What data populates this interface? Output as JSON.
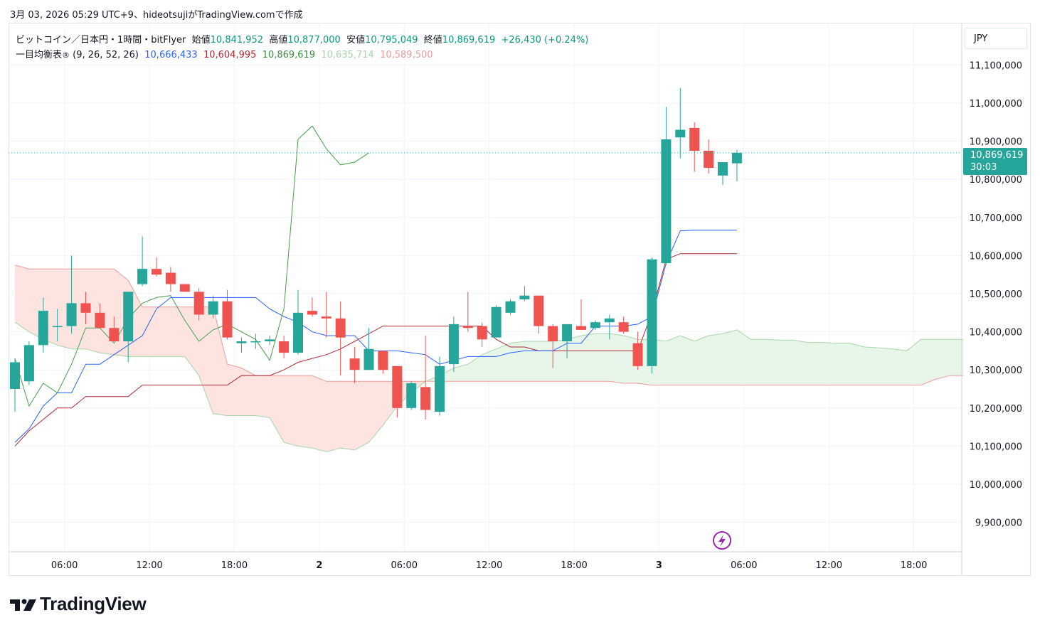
{
  "header": {
    "topline": "3月 03, 2026 05:29 UTC+9、hideotsujiがTradingView.comで作成"
  },
  "legend": {
    "symbol": "ビットコイン／日本円・1時間・bitFlyer",
    "open_label": "始値",
    "open": "10,841,952",
    "high_label": "高値",
    "high": "10,877,000",
    "low_label": "安値",
    "low": "10,795,049",
    "close_label": "終値",
    "close": "10,869,619",
    "change": "+26,430 (+0.24%)",
    "indicator": "一目均衡表",
    "indicator_mark": "®",
    "indicator_params": "(9, 26, 52, 26)",
    "tenkan": "10,666,433",
    "kijun": "10,604,995",
    "chikou": "10,869,619",
    "span_a": "10,635,714",
    "span_b": "10,589,500"
  },
  "currency": "JPY",
  "last_price": {
    "value": "10,869,619",
    "countdown": "30:03"
  },
  "brand": "TradingView",
  "colors": {
    "up": "#26a69a",
    "down": "#ef5350",
    "tenkan": "#2962ff",
    "kijun": "#b22833",
    "chikou": "#43a047",
    "span_a": "#a5d6a7",
    "span_b": "#ef9a9a",
    "cloud_bull": "#e8f5e9",
    "cloud_bear": "#fde4e1",
    "grid": "#f0f3fa"
  },
  "chart_data": {
    "type": "candlestick",
    "title": "ビットコイン／日本円・1時間・bitFlyer",
    "ylim": [
      9830000,
      11200000
    ],
    "y_ticks": [
      "11,100,000",
      "11,000,000",
      "10,900,000",
      "10,800,000",
      "10,700,000",
      "10,600,000",
      "10,500,000",
      "10,400,000",
      "10,300,000",
      "10,200,000",
      "10,100,000",
      "10,000,000",
      "9,900,000"
    ],
    "y_tick_values": [
      11100000,
      11000000,
      10900000,
      10800000,
      10700000,
      10600000,
      10500000,
      10400000,
      10300000,
      10200000,
      10100000,
      10000000,
      9900000
    ],
    "x_ticks": [
      {
        "slot": 3.5,
        "label": "06:00",
        "bold": false
      },
      {
        "slot": 9.5,
        "label": "12:00",
        "bold": false
      },
      {
        "slot": 15.5,
        "label": "18:00",
        "bold": false
      },
      {
        "slot": 21.5,
        "label": "2",
        "bold": true
      },
      {
        "slot": 27.5,
        "label": "06:00",
        "bold": false
      },
      {
        "slot": 33.5,
        "label": "12:00",
        "bold": false
      },
      {
        "slot": 39.5,
        "label": "18:00",
        "bold": false
      },
      {
        "slot": 45.5,
        "label": "3",
        "bold": true
      },
      {
        "slot": 51.5,
        "label": "06:00",
        "bold": false
      },
      {
        "slot": 57.5,
        "label": "12:00",
        "bold": false
      },
      {
        "slot": 63.5,
        "label": "18:00",
        "bold": false
      }
    ],
    "candles": [
      [
        10250000,
        10330000,
        10190000,
        10320000
      ],
      [
        10270000,
        10375000,
        10260000,
        10365000
      ],
      [
        10365000,
        10490000,
        10345000,
        10455000
      ],
      [
        10415000,
        10460000,
        10375000,
        10415000
      ],
      [
        10415000,
        10600000,
        10395000,
        10475000
      ],
      [
        10475000,
        10505000,
        10420000,
        10450000
      ],
      [
        10450000,
        10475000,
        10420000,
        10410000
      ],
      [
        10410000,
        10440000,
        10375000,
        10375000
      ],
      [
        10375000,
        10500000,
        10320000,
        10505000
      ],
      [
        10525000,
        10650000,
        10520000,
        10565000
      ],
      [
        10565000,
        10595000,
        10545000,
        10550000
      ],
      [
        10555000,
        10570000,
        10505000,
        10525000
      ],
      [
        10525000,
        10525000,
        10505000,
        10505000
      ],
      [
        10505000,
        10515000,
        10430000,
        10445000
      ],
      [
        10445000,
        10495000,
        10435000,
        10480000
      ],
      [
        10480000,
        10510000,
        10380000,
        10385000
      ],
      [
        10370000,
        10385000,
        10345000,
        10375000
      ],
      [
        10375000,
        10395000,
        10355000,
        10375000
      ],
      [
        10375000,
        10390000,
        10365000,
        10380000
      ],
      [
        10375000,
        10390000,
        10330000,
        10345000
      ],
      [
        10345000,
        10510000,
        10340000,
        10450000
      ],
      [
        10455000,
        10490000,
        10440000,
        10445000
      ],
      [
        10440000,
        10505000,
        10385000,
        10435000
      ],
      [
        10435000,
        10480000,
        10285000,
        10385000
      ],
      [
        10330000,
        10360000,
        10265000,
        10300000
      ],
      [
        10300000,
        10410000,
        10300000,
        10355000
      ],
      [
        10350000,
        10350000,
        10290000,
        10300000
      ],
      [
        10310000,
        10310000,
        10175000,
        10200000
      ],
      [
        10200000,
        10270000,
        10195000,
        10265000
      ],
      [
        10255000,
        10390000,
        10170000,
        10195000
      ],
      [
        10190000,
        10335000,
        10180000,
        10310000
      ],
      [
        10315000,
        10440000,
        10295000,
        10420000
      ],
      [
        10415000,
        10505000,
        10400000,
        10410000
      ],
      [
        10415000,
        10425000,
        10360000,
        10380000
      ],
      [
        10385000,
        10470000,
        10385000,
        10465000
      ],
      [
        10450000,
        10485000,
        10445000,
        10480000
      ],
      [
        10485000,
        10520000,
        10480000,
        10495000
      ],
      [
        10495000,
        10495000,
        10395000,
        10415000
      ],
      [
        10415000,
        10420000,
        10305000,
        10375000
      ],
      [
        10375000,
        10420000,
        10330000,
        10420000
      ],
      [
        10415000,
        10485000,
        10405000,
        10405000
      ],
      [
        10410000,
        10430000,
        10405000,
        10425000
      ],
      [
        10425000,
        10445000,
        10380000,
        10435000
      ],
      [
        10425000,
        10440000,
        10395000,
        10400000
      ],
      [
        10370000,
        10400000,
        10300000,
        10310000
      ],
      [
        10310000,
        10595000,
        10290000,
        10590000
      ],
      [
        10580000,
        10990000,
        10575000,
        10905000
      ],
      [
        10910000,
        11040000,
        10855000,
        10930000
      ],
      [
        10935000,
        10950000,
        10820000,
        10875000
      ],
      [
        10875000,
        10905000,
        10815000,
        10830000
      ],
      [
        10810000,
        10845000,
        10785000,
        10845000
      ],
      [
        10841952,
        10877000,
        10795049,
        10869619
      ]
    ],
    "tenkan": [
      10110000,
      10145000,
      10205000,
      10240000,
      10240000,
      10315000,
      10315000,
      10340000,
      10365000,
      10390000,
      10460000,
      10490000,
      10490000,
      10490000,
      10490000,
      10490000,
      10490000,
      10490000,
      10460000,
      10440000,
      10425000,
      10400000,
      10390000,
      10390000,
      10390000,
      10350000,
      10350000,
      10350000,
      10345000,
      10340000,
      10315000,
      10325000,
      10335000,
      10335000,
      10335000,
      10345000,
      10350000,
      10350000,
      10350000,
      10370000,
      10370000,
      10415000,
      10415000,
      10415000,
      10420000,
      10440000,
      10580000,
      10665000,
      10666433,
      10666433,
      10666433,
      10666433
    ],
    "kijun": [
      10100000,
      10140000,
      10170000,
      10200000,
      10200000,
      10230000,
      10230000,
      10230000,
      10230000,
      10260000,
      10260000,
      10260000,
      10260000,
      10260000,
      10260000,
      10260000,
      10285000,
      10285000,
      10285000,
      10300000,
      10320000,
      10330000,
      10340000,
      10355000,
      10375000,
      10395000,
      10415000,
      10415000,
      10415000,
      10415000,
      10415000,
      10415000,
      10415000,
      10415000,
      10380000,
      10360000,
      10360000,
      10350000,
      10350000,
      10350000,
      10350000,
      10350000,
      10350000,
      10350000,
      10350000,
      10450000,
      10590000,
      10604995,
      10604995,
      10604995,
      10604995,
      10604995
    ],
    "chikou": [
      10330000,
      10205000,
      10265000,
      10240000,
      10315000,
      10410000,
      10410000,
      10370000,
      10435000,
      10475000,
      10490000,
      10495000,
      10430000,
      10375000,
      10405000,
      10420000,
      10400000,
      10380000,
      10325000,
      10460000,
      10905000,
      10940000,
      10880000,
      10838000,
      10845000,
      10869619
    ],
    "span_a": [
      10425000,
      10400000,
      10380000,
      10365000,
      10355000,
      10355000,
      10345000,
      10340000,
      10335000,
      10335000,
      10335000,
      10335000,
      10335000,
      10285000,
      10185000,
      10180000,
      10180000,
      10180000,
      10175000,
      10110000,
      10100000,
      10095000,
      10085000,
      10095000,
      10090000,
      10110000,
      10155000,
      10205000,
      10240000,
      10270000,
      10285000,
      10305000,
      10315000,
      10340000,
      10355000,
      10370000,
      10375000,
      10375000,
      10375000,
      10380000,
      10390000,
      10395000,
      10395000,
      10390000,
      10380000,
      10380000,
      10375000,
      10390000,
      10375000,
      10390000,
      10395000,
      10405000,
      10380000,
      10380000,
      10378000,
      10378000,
      10372000,
      10372000,
      10370000,
      10370000,
      10360000,
      10358000,
      10355000,
      10350000,
      10380000,
      10380000,
      10380000,
      10380000
    ],
    "span_b": [
      10575000,
      10565000,
      10565000,
      10565000,
      10565000,
      10565000,
      10565000,
      10565000,
      10535000,
      10465000,
      10465000,
      10465000,
      10465000,
      10465000,
      10465000,
      10315000,
      10305000,
      10285000,
      10285000,
      10285000,
      10285000,
      10285000,
      10270000,
      10270000,
      10270000,
      10270000,
      10270000,
      10270000,
      10270000,
      10270000,
      10270000,
      10270000,
      10270000,
      10270000,
      10270000,
      10270000,
      10270000,
      10270000,
      10270000,
      10270000,
      10270000,
      10270000,
      10270000,
      10265000,
      10265000,
      10260000,
      10260000,
      10260000,
      10260000,
      10260000,
      10260000,
      10260000,
      10260000,
      10260000,
      10260000,
      10260000,
      10260000,
      10260000,
      10260000,
      10260000,
      10260000,
      10260000,
      10260000,
      10260000,
      10260000,
      10275000,
      10285000,
      10285000
    ]
  }
}
